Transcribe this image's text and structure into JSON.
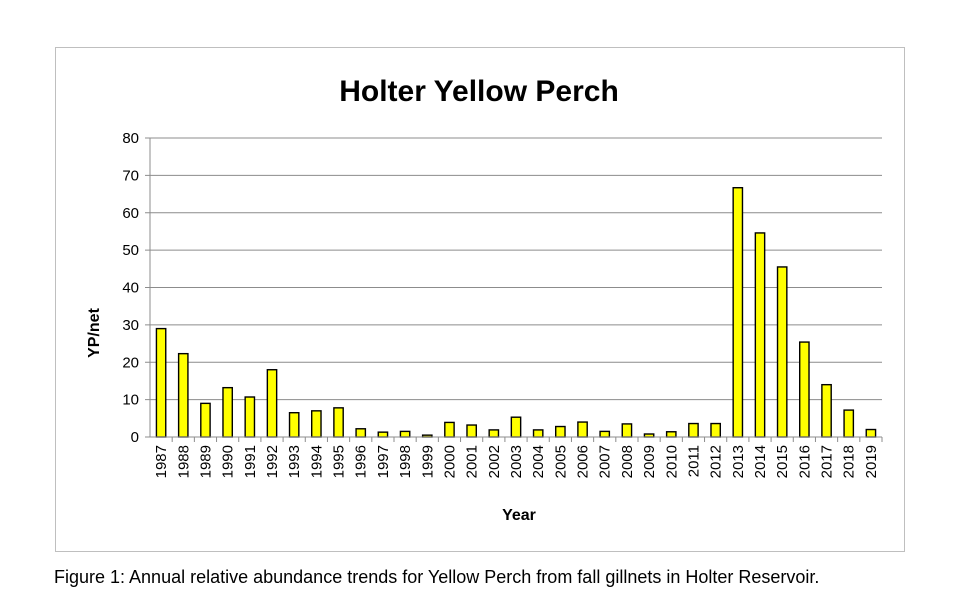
{
  "caption": "Figure 1: Annual relative abundance trends for Yellow Perch from fall gillnets in Holter Reservoir.",
  "chart_data": {
    "type": "bar",
    "title": "Holter Yellow Perch",
    "xlabel": "Year",
    "ylabel": "YP/net",
    "ylim": [
      0,
      80
    ],
    "yticks": [
      0,
      10,
      20,
      30,
      40,
      50,
      60,
      70,
      80
    ],
    "grid": true,
    "bar_color": "#ffff00",
    "bar_edge_color": "#000000",
    "grid_color": "#8c8c8c",
    "categories": [
      "1987",
      "1988",
      "1989",
      "1990",
      "1991",
      "1992",
      "1993",
      "1994",
      "1995",
      "1996",
      "1997",
      "1998",
      "1999",
      "2000",
      "2001",
      "2002",
      "2003",
      "2004",
      "2005",
      "2006",
      "2007",
      "2008",
      "2009",
      "2010",
      "2011",
      "2012",
      "2013",
      "2014",
      "2015",
      "2016",
      "2017",
      "2018",
      "2019"
    ],
    "values": [
      29,
      22.3,
      9,
      13.2,
      10.7,
      18,
      6.5,
      7,
      7.8,
      2.2,
      1.3,
      1.5,
      0.5,
      3.9,
      3.2,
      1.9,
      5.3,
      1.9,
      2.8,
      4,
      1.5,
      3.5,
      0.8,
      1.4,
      3.6,
      3.6,
      66.7,
      54.6,
      45.5,
      25.4,
      14,
      7.2,
      2
    ]
  }
}
